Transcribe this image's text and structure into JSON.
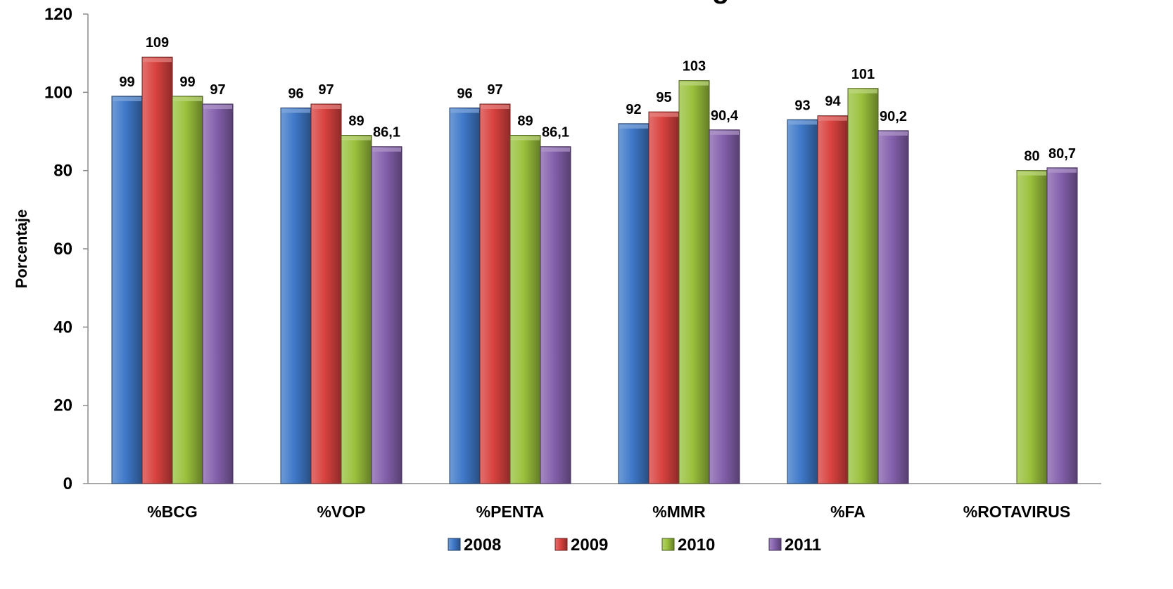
{
  "chart_data": {
    "type": "bar",
    "title": "g",
    "ylabel": "Porcentaje",
    "xlabel": "",
    "ylim": [
      0,
      120
    ],
    "yticks": [
      "0",
      "20",
      "40",
      "60",
      "80",
      "100",
      "120"
    ],
    "categories": [
      "%BCG",
      "%VOP",
      "%PENTA",
      "%MMR",
      "%FA",
      "%ROTAVIRUS"
    ],
    "series": [
      {
        "name": "2008",
        "color": "#3f79c9",
        "values": [
          99,
          96,
          96,
          92,
          93,
          null
        ],
        "labels": [
          "99",
          "96",
          "96",
          "92",
          "93",
          ""
        ]
      },
      {
        "name": "2009",
        "color": "#d9423f",
        "values": [
          109,
          97,
          97,
          95,
          94,
          null
        ],
        "labels": [
          "109",
          "97",
          "97",
          "95",
          "94",
          ""
        ]
      },
      {
        "name": "2010",
        "color": "#9ac13c",
        "values": [
          99,
          89,
          89,
          103,
          101,
          80
        ],
        "labels": [
          "99",
          "89",
          "89",
          "103",
          "101",
          "80"
        ]
      },
      {
        "name": "2011",
        "color": "#8561ad",
        "values": [
          97,
          86.1,
          86.1,
          90.4,
          90.2,
          80.7
        ],
        "labels": [
          "97",
          "86,1",
          "86,1",
          "90,4",
          "90,2",
          "80,7"
        ]
      }
    ],
    "grid": false,
    "legend_position": "bottom"
  }
}
